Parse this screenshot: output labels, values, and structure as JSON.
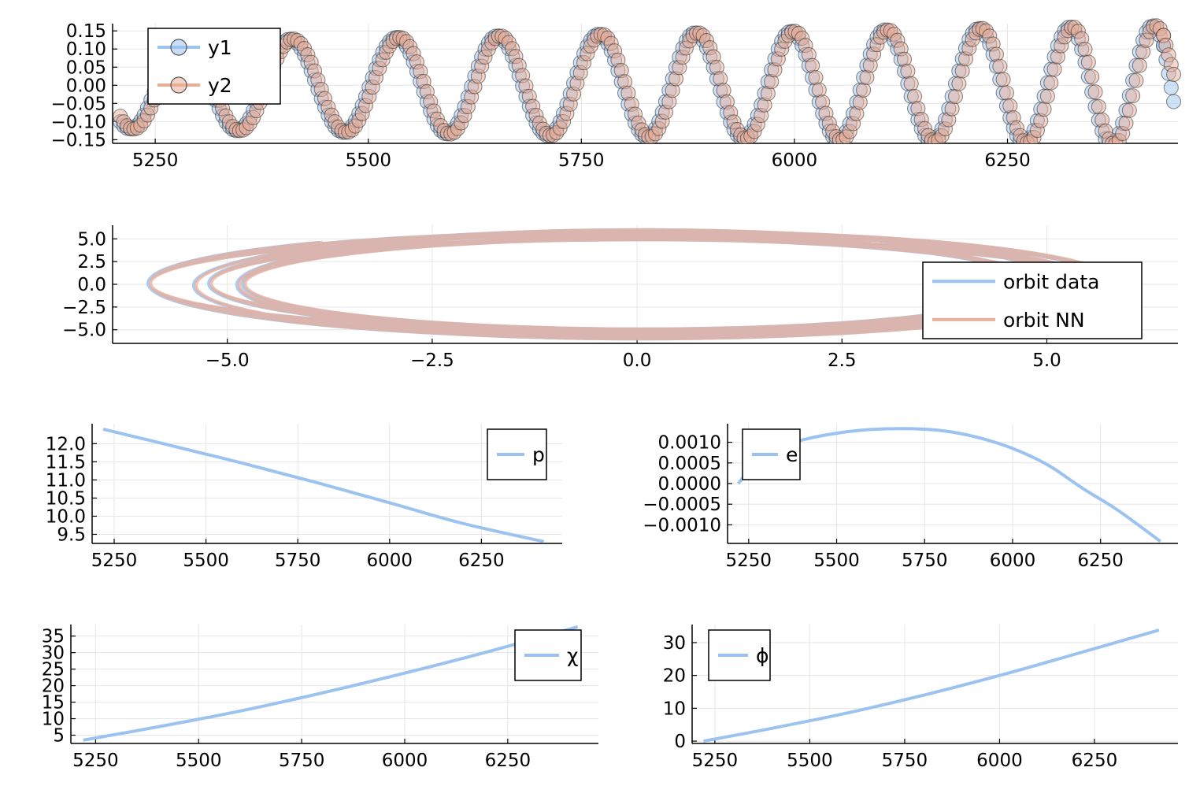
{
  "figure": {
    "background": "#ffffff",
    "colors": {
      "series1": "#9cc3f0",
      "series2": "#e9ae98",
      "marker1": "#6f9fd9",
      "marker2": "#e07f5c",
      "grid": "#e6e6e6"
    }
  },
  "chart_data": [
    {
      "id": "waveform",
      "type": "scatter",
      "title": "",
      "xlabel": "",
      "ylabel": "",
      "xlim": [
        5200,
        6450
      ],
      "ylim": [
        -0.16,
        0.17
      ],
      "xticks": [
        5250,
        5500,
        5750,
        6000,
        6250
      ],
      "xtick_labels": [
        "5250",
        "5500",
        "5750",
        "6000",
        "6250"
      ],
      "yticks": [
        -0.15,
        -0.1,
        -0.05,
        0.0,
        0.05,
        0.1,
        0.15
      ],
      "ytick_labels": [
        "−0.15",
        "−0.10",
        "−0.05",
        "0.00",
        "0.05",
        "0.10",
        "0.15"
      ],
      "grid": true,
      "legend": "top-left",
      "series": [
        {
          "name": "y1",
          "color": "#9cc3f0",
          "marker": "circle",
          "x_start": 5209,
          "x_end": 6445,
          "amplitude_start": 0.12,
          "amplitude_end": 0.165,
          "period_start": 118,
          "period_end": 108,
          "peaks_x": [
            5408,
            5533,
            5651,
            5770,
            5883,
            5996,
            6106,
            6216,
            6323,
            6420
          ],
          "last_value": -0.045
        },
        {
          "name": "y2",
          "color": "#e9ae98",
          "marker": "circle",
          "x_start": 5209,
          "x_end": 6445,
          "amplitude_start": 0.12,
          "amplitude_end": 0.165,
          "period_start": 118,
          "period_end": 108,
          "peaks_x": [
            5412,
            5537,
            5655,
            5774,
            5887,
            6000,
            6110,
            6220,
            6327,
            6424
          ],
          "last_value": 0.03
        }
      ]
    },
    {
      "id": "orbit",
      "type": "line",
      "title": "",
      "xlabel": "",
      "ylabel": "",
      "xlim": [
        -6.4,
        6.6
      ],
      "ylim": [
        -6.5,
        6.5
      ],
      "xticks": [
        -5.0,
        -2.5,
        0.0,
        2.5,
        5.0
      ],
      "xtick_labels": [
        "−5.0",
        "−2.5",
        "0.0",
        "2.5",
        "5.0"
      ],
      "yticks": [
        -5.0,
        -2.5,
        0.0,
        2.5,
        5.0
      ],
      "ytick_labels": [
        "−5.0",
        "−2.5",
        "0.0",
        "2.5",
        "5.0"
      ],
      "grid": true,
      "legend": "bottom-right",
      "series": [
        {
          "name": "orbit data",
          "color": "#9cc3f0",
          "x_center": 0.0,
          "rx_max": 6.1,
          "rx_min": 4.8,
          "y_amp_max": 6.0,
          "y_amp_min": 4.9,
          "turns": 11,
          "start": [
            -3.5,
            2.8
          ]
        },
        {
          "name": "orbit NN",
          "color": "#e9ae98",
          "x_center": 0.0,
          "rx_max": 6.1,
          "rx_min": 4.8,
          "y_amp_max": 6.0,
          "y_amp_min": 4.9,
          "turns": 11,
          "start": [
            -3.1,
            3.5
          ]
        }
      ]
    },
    {
      "id": "p",
      "type": "line",
      "title": "",
      "xlabel": "",
      "ylabel": "",
      "xlim": [
        5190,
        6470
      ],
      "ylim": [
        9.25,
        12.55
      ],
      "xticks": [
        5250,
        5500,
        5750,
        6000,
        6250
      ],
      "xtick_labels": [
        "5250",
        "5500",
        "5750",
        "6000",
        "6250"
      ],
      "yticks": [
        9.5,
        10.0,
        10.5,
        11.0,
        11.5,
        12.0
      ],
      "ytick_labels": [
        "9.5",
        "10.0",
        "10.5",
        "11.0",
        "11.5",
        "12.0"
      ],
      "grid": true,
      "legend": "top-right",
      "series": [
        {
          "name": "p",
          "color": "#9cc3f0",
          "x": [
            5220,
            5400,
            5600,
            5800,
            6000,
            6200,
            6420
          ],
          "y": [
            12.4,
            11.96,
            11.46,
            10.93,
            10.37,
            9.8,
            9.3
          ]
        }
      ]
    },
    {
      "id": "e",
      "type": "line",
      "title": "",
      "xlabel": "",
      "ylabel": "",
      "xlim": [
        5190,
        6470
      ],
      "ylim": [
        -0.00145,
        0.00145
      ],
      "xticks": [
        5250,
        5500,
        5750,
        6000,
        6250
      ],
      "xtick_labels": [
        "5250",
        "5500",
        "5750",
        "6000",
        "6250"
      ],
      "yticks": [
        -0.001,
        -0.0005,
        0.0,
        0.0005,
        0.001
      ],
      "ytick_labels": [
        "−0.0010",
        "−0.0005",
        "0.0000",
        "0.0005",
        "0.0010"
      ],
      "grid": true,
      "legend": "top-left",
      "series": [
        {
          "name": "e",
          "color": "#9cc3f0",
          "x": [
            5220,
            5300,
            5400,
            5500,
            5600,
            5700,
            5800,
            5900,
            6000,
            6100,
            6200,
            6300,
            6420
          ],
          "y": [
            0.0,
            0.00075,
            0.00105,
            0.00122,
            0.00131,
            0.00133,
            0.00128,
            0.00112,
            0.00085,
            0.00045,
            -0.00012,
            -0.00065,
            -0.0014
          ]
        }
      ]
    },
    {
      "id": "chi",
      "type": "line",
      "title": "",
      "xlabel": "",
      "ylabel": "",
      "xlim": [
        5190,
        6470
      ],
      "ylim": [
        2.5,
        38.5
      ],
      "xticks": [
        5250,
        5500,
        5750,
        6000,
        6250
      ],
      "xtick_labels": [
        "5250",
        "5500",
        "5750",
        "6000",
        "6250"
      ],
      "yticks": [
        5,
        10,
        15,
        20,
        25,
        30,
        35
      ],
      "ytick_labels": [
        "5",
        "10",
        "15",
        "20",
        "25",
        "30",
        "35"
      ],
      "grid": true,
      "legend": "top-right",
      "series": [
        {
          "name": "χ",
          "color": "#9cc3f0",
          "x": [
            5220,
            5400,
            5600,
            5800,
            6000,
            6200,
            6420
          ],
          "y": [
            3.5,
            7.5,
            12.3,
            17.8,
            23.8,
            30.2,
            37.8
          ]
        }
      ]
    },
    {
      "id": "phi",
      "type": "line",
      "title": "",
      "xlabel": "",
      "ylabel": "",
      "xlim": [
        5190,
        6470
      ],
      "ylim": [
        -0.7,
        35.5
      ],
      "xticks": [
        5250,
        5500,
        5750,
        6000,
        6250
      ],
      "xtick_labels": [
        "5250",
        "5500",
        "5750",
        "6000",
        "6250"
      ],
      "yticks": [
        0,
        10,
        20,
        30
      ],
      "ytick_labels": [
        "0",
        "10",
        "20",
        "30"
      ],
      "grid": true,
      "legend": "top-left",
      "series": [
        {
          "name": "ϕ",
          "color": "#9cc3f0",
          "x": [
            5220,
            5400,
            5600,
            5800,
            6000,
            6200,
            6420
          ],
          "y": [
            0.0,
            3.9,
            8.6,
            14.0,
            20.0,
            26.5,
            33.8
          ]
        }
      ]
    }
  ]
}
